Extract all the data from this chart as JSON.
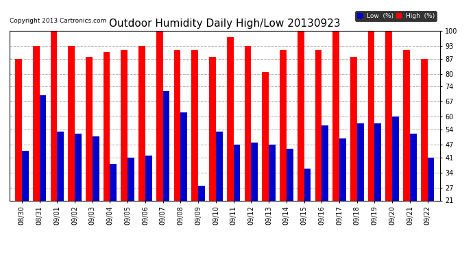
{
  "title": "Outdoor Humidity Daily High/Low 20130923",
  "copyright": "Copyright 2013 Cartronics.com",
  "categories": [
    "08/30",
    "08/31",
    "09/01",
    "09/02",
    "09/03",
    "09/04",
    "09/05",
    "09/06",
    "09/07",
    "09/08",
    "09/09",
    "09/10",
    "09/11",
    "09/12",
    "09/13",
    "09/14",
    "09/15",
    "09/16",
    "09/17",
    "09/18",
    "09/19",
    "09/20",
    "09/21",
    "09/22"
  ],
  "high_values": [
    87,
    93,
    100,
    93,
    88,
    90,
    91,
    93,
    100,
    91,
    91,
    88,
    97,
    93,
    81,
    91,
    100,
    91,
    100,
    88,
    100,
    100,
    91,
    87
  ],
  "low_values": [
    44,
    70,
    53,
    52,
    51,
    38,
    41,
    42,
    72,
    62,
    28,
    53,
    47,
    48,
    47,
    45,
    36,
    56,
    50,
    57,
    57,
    60,
    52,
    41
  ],
  "bar_width": 0.38,
  "high_color": "#ff0000",
  "low_color": "#0000cc",
  "bg_color": "#ffffff",
  "grid_color": "#aaaaaa",
  "ylim_min": 21,
  "ylim_max": 100,
  "yticks": [
    21,
    27,
    34,
    41,
    47,
    54,
    60,
    67,
    74,
    80,
    87,
    93,
    100
  ],
  "legend_low_label": "Low  (%)",
  "legend_high_label": "High  (%)",
  "title_fontsize": 11,
  "tick_fontsize": 7,
  "copyright_fontsize": 6.5
}
